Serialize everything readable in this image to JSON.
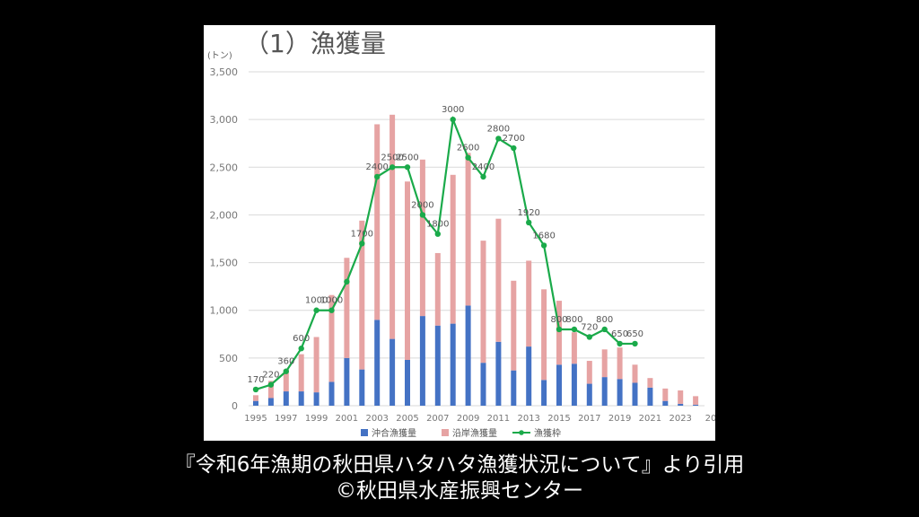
{
  "caption": {
    "line1": "『令和6年漁期の秋田県ハタハタ漁獲状況について』より引用",
    "line2": "©秋田県水産振興センター"
  },
  "chart_data": {
    "type": "bar",
    "title": "（1）漁獲量",
    "ylabel": "(トン)",
    "ylim": [
      0,
      3500
    ],
    "yticks": [
      "0",
      "500",
      "1,000",
      "1,500",
      "2,000",
      "2,500",
      "3,000",
      "3,500"
    ],
    "xtick_labels": [
      "1995",
      "1997",
      "1999",
      "2001",
      "2003",
      "2005",
      "2007",
      "2009",
      "2011",
      "2013",
      "2015",
      "2017",
      "2019",
      "2021",
      "2023",
      "20"
    ],
    "years": [
      1995,
      1996,
      1997,
      1998,
      1999,
      2000,
      2001,
      2002,
      2003,
      2004,
      2005,
      2006,
      2007,
      2008,
      2009,
      2010,
      2011,
      2012,
      2013,
      2014,
      2015,
      2016,
      2017,
      2018,
      2019,
      2020,
      2021,
      2022,
      2023,
      2024
    ],
    "grid": true,
    "legend_position": "bottom",
    "colors": {
      "offshore": "#4472c4",
      "coastal": "#e6a3a3",
      "quota": "#1aaa4a"
    },
    "series": [
      {
        "name": "沖合漁獲量",
        "type": "bar-stacked",
        "values": [
          50,
          80,
          150,
          150,
          140,
          250,
          500,
          380,
          900,
          700,
          480,
          940,
          840,
          860,
          1050,
          450,
          670,
          370,
          620,
          270,
          430,
          440,
          230,
          300,
          280,
          240,
          190,
          50,
          20,
          10
        ]
      },
      {
        "name": "沿岸漁獲量",
        "type": "bar-stacked",
        "values": [
          60,
          180,
          230,
          390,
          580,
          910,
          1050,
          1560,
          2050,
          2350,
          1870,
          1640,
          760,
          1560,
          1600,
          1280,
          1290,
          940,
          900,
          950,
          670,
          330,
          240,
          290,
          330,
          190,
          100,
          130,
          140,
          90
        ]
      },
      {
        "name": "漁獲枠",
        "type": "line",
        "x": [
          1995,
          1996,
          1997,
          1998,
          1999,
          2000,
          2001,
          2002,
          2003,
          2004,
          2005,
          2006,
          2007,
          2008,
          2009,
          2010,
          2011,
          2012,
          2013,
          2014,
          2015,
          2016,
          2017,
          2018,
          2019,
          2020
        ],
        "values": [
          170,
          220,
          360,
          600,
          1000,
          1000,
          1300,
          1700,
          2400,
          2500,
          2500,
          2000,
          1800,
          3000,
          2600,
          2400,
          2800,
          2700,
          1920,
          1680,
          800,
          800,
          720,
          800,
          650,
          650
        ]
      }
    ],
    "data_labels": [
      {
        "year": 1995,
        "text": "170"
      },
      {
        "year": 1996,
        "text": "220"
      },
      {
        "year": 1997,
        "text": "360"
      },
      {
        "year": 1998,
        "text": "600"
      },
      {
        "year": 1999,
        "text": "1000"
      },
      {
        "year": 2000,
        "text": "1000"
      },
      {
        "year": 2002,
        "text": "1700"
      },
      {
        "year": 2003,
        "text": "2400"
      },
      {
        "year": 2004,
        "text": "2500"
      },
      {
        "year": 2005,
        "text": "2500"
      },
      {
        "year": 2006,
        "text": "2000"
      },
      {
        "year": 2007,
        "text": "1800"
      },
      {
        "year": 2008,
        "text": "3000"
      },
      {
        "year": 2009,
        "text": "2600"
      },
      {
        "year": 2010,
        "text": "2400"
      },
      {
        "year": 2011,
        "text": "2800"
      },
      {
        "year": 2012,
        "text": "2700"
      },
      {
        "year": 2013,
        "text": "1920"
      },
      {
        "year": 2014,
        "text": "1680"
      },
      {
        "year": 2015,
        "text": "800"
      },
      {
        "year": 2016,
        "text": "800"
      },
      {
        "year": 2017,
        "text": "720"
      },
      {
        "year": 2018,
        "text": "800"
      },
      {
        "year": 2019,
        "text": "650"
      },
      {
        "year": 2020,
        "text": "650"
      }
    ]
  }
}
